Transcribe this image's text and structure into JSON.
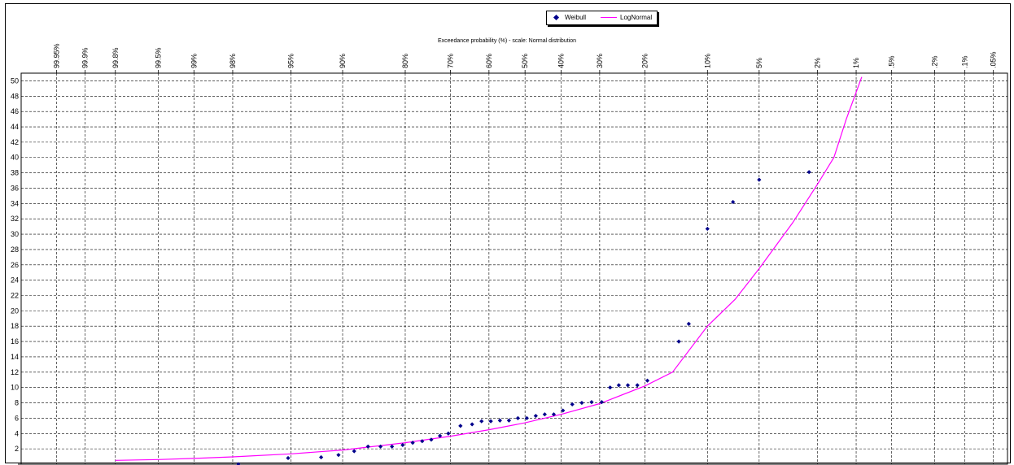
{
  "chart_data": {
    "type": "scatter",
    "title": "Exceedance probability (%) - scale: Normal distribution",
    "legend": {
      "placement": "top-center",
      "entries": [
        "Weibull",
        "LogNormal"
      ]
    },
    "colors": {
      "weibull": "#00008b",
      "lognormal": "#ff00ff"
    },
    "x_axis": {
      "position": "top",
      "scale": "normal-probability",
      "tick_labels": [
        "99.95%",
        "99.9%",
        "99.8%",
        "99.5%",
        "99%",
        "98%",
        "95%",
        "90%",
        "80%",
        "70%",
        "60%",
        "50%",
        "40%",
        "30%",
        "20%",
        "10%",
        "5%",
        "2%",
        "1%",
        ".5%",
        ".2%",
        ".1%",
        ".05%"
      ],
      "tick_values": [
        99.95,
        99.9,
        99.8,
        99.5,
        99,
        98,
        95,
        90,
        80,
        70,
        60,
        50,
        40,
        30,
        20,
        10,
        5,
        2,
        1,
        0.5,
        0.2,
        0.1,
        0.05
      ],
      "xlim": [
        99.98,
        0.035
      ]
    },
    "y_axis": {
      "ylim": [
        0,
        51
      ],
      "tick_labels": [
        "2",
        "4",
        "6",
        "8",
        "10",
        "12",
        "14",
        "16",
        "18",
        "20",
        "22",
        "24",
        "26",
        "28",
        "30",
        "32",
        "34",
        "36",
        "38",
        "40",
        "42",
        "44",
        "46",
        "48",
        "50"
      ],
      "tick_values": [
        2,
        4,
        6,
        8,
        10,
        12,
        14,
        16,
        18,
        20,
        22,
        24,
        26,
        28,
        30,
        32,
        34,
        36,
        38,
        40,
        42,
        44,
        46,
        48,
        50
      ]
    },
    "grid": true,
    "series": [
      {
        "name": "Weibull",
        "kind": "scatter",
        "points": [
          [
            97.8,
            0.0
          ],
          [
            95.2,
            0.8
          ],
          [
            92.4,
            0.9
          ],
          [
            90.5,
            1.2
          ],
          [
            88.5,
            1.7
          ],
          [
            86.5,
            2.3
          ],
          [
            84.5,
            2.3
          ],
          [
            82.5,
            2.3
          ],
          [
            80.5,
            2.5
          ],
          [
            78.5,
            2.8
          ],
          [
            76.5,
            3.0
          ],
          [
            74.5,
            3.2
          ],
          [
            72.5,
            3.7
          ],
          [
            70.5,
            4.0
          ],
          [
            67.5,
            5.0
          ],
          [
            64.5,
            5.2
          ],
          [
            62.0,
            5.6
          ],
          [
            59.5,
            5.6
          ],
          [
            57.0,
            5.7
          ],
          [
            54.5,
            5.7
          ],
          [
            52.0,
            6.0
          ],
          [
            49.5,
            6.0
          ],
          [
            47.0,
            6.3
          ],
          [
            44.5,
            6.5
          ],
          [
            42.0,
            6.5
          ],
          [
            39.5,
            7.0
          ],
          [
            37.0,
            7.8
          ],
          [
            34.5,
            8.0
          ],
          [
            32.0,
            8.1
          ],
          [
            29.5,
            8.1
          ],
          [
            27.5,
            10.0
          ],
          [
            25.5,
            10.3
          ],
          [
            23.5,
            10.3
          ],
          [
            21.5,
            10.3
          ],
          [
            19.5,
            10.9
          ],
          [
            14.0,
            16.0
          ],
          [
            12.5,
            18.3
          ],
          [
            10.0,
            30.7
          ],
          [
            7.2,
            34.2
          ],
          [
            5.0,
            37.1
          ],
          [
            2.3,
            38.1
          ]
        ]
      },
      {
        "name": "LogNormal",
        "kind": "line",
        "points": [
          [
            99.8,
            0.5
          ],
          [
            99.5,
            0.6
          ],
          [
            99,
            0.75
          ],
          [
            98,
            0.95
          ],
          [
            95,
            1.35
          ],
          [
            90,
            1.85
          ],
          [
            80,
            2.8
          ],
          [
            70,
            3.65
          ],
          [
            60,
            4.5
          ],
          [
            50,
            5.4
          ],
          [
            40,
            6.5
          ],
          [
            30,
            7.9
          ],
          [
            20,
            10.2
          ],
          [
            15,
            12.0
          ],
          [
            10,
            18.0
          ],
          [
            7,
            21.5
          ],
          [
            5,
            25.5
          ],
          [
            3,
            31.5
          ],
          [
            2,
            36.5
          ],
          [
            1.5,
            40.0
          ],
          [
            1.2,
            45.0
          ],
          [
            0.9,
            50.5
          ]
        ]
      }
    ]
  }
}
